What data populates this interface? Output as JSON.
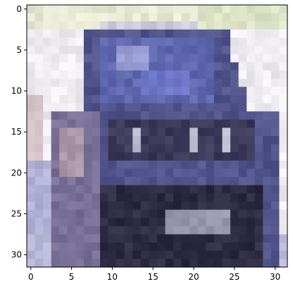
{
  "figure": {
    "type": "image-plot",
    "grid_size": [
      32,
      32
    ],
    "x_ticks": [
      "0",
      "5",
      "10",
      "15",
      "20",
      "25",
      "30"
    ],
    "y_ticks": [
      "0",
      "5",
      "10",
      "15",
      "20",
      "25",
      "30"
    ],
    "image_description_colors": {
      "background": "#f2f0f2",
      "car_body": "#5a5f9c",
      "car_dark": "#2e2c44",
      "sky_top": "#e7ebd8"
    }
  }
}
